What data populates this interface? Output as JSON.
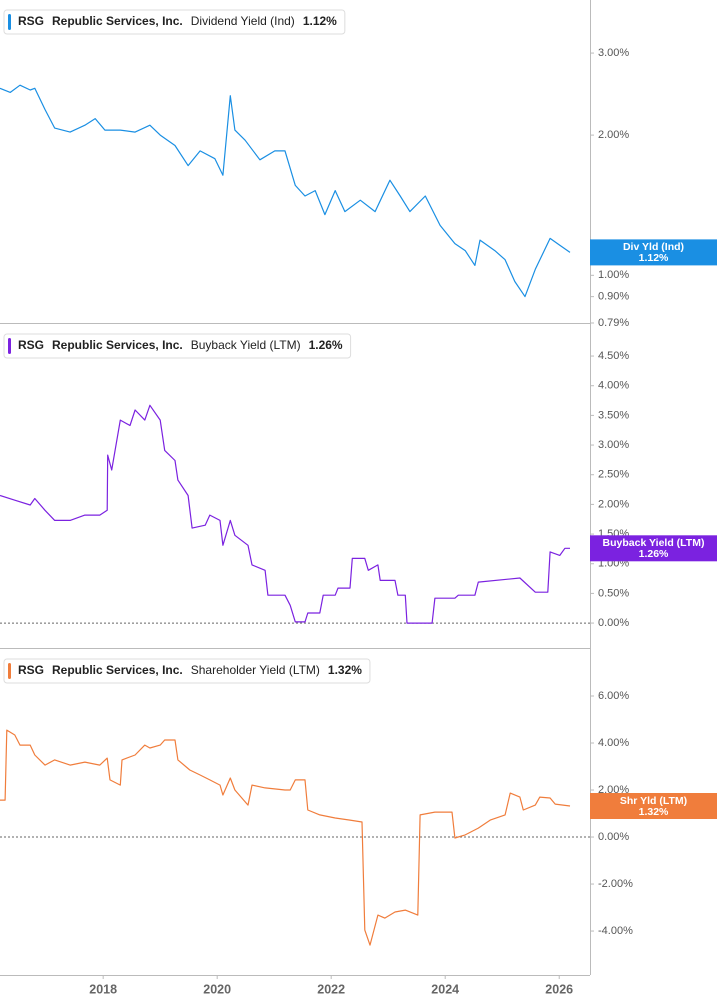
{
  "chart_data": [
    {
      "type": "line",
      "ticker": "RSG",
      "company": "Republic Services, Inc.",
      "title": "Dividend Yield (Ind)",
      "last_value": {
        "value": 1.12,
        "label": "1.12%"
      },
      "badge_label": "Div Yld (Ind)",
      "color": "#1a8fe3",
      "log_scale": true,
      "zero_line": false,
      "xlim": [
        2016.19,
        2026.54
      ],
      "ylim": [
        0.79,
        3.9
      ],
      "yticks": [
        {
          "value": 3,
          "label": "3.00%"
        },
        {
          "value": 2,
          "label": "2.00%"
        },
        {
          "value": 1,
          "label": "1.00%"
        },
        {
          "value": 0.9,
          "label": "0.90%"
        },
        {
          "value": 0.79,
          "label": "0.79%"
        }
      ],
      "x": [
        2016.19,
        2016.37,
        2016.54,
        2016.72,
        2016.8,
        2016.98,
        2017.15,
        2017.42,
        2017.68,
        2017.86,
        2018.03,
        2018.3,
        2018.56,
        2018.82,
        2019.0,
        2019.26,
        2019.49,
        2019.7,
        2019.96,
        2020.1,
        2020.23,
        2020.31,
        2020.49,
        2020.75,
        2021.01,
        2021.19,
        2021.37,
        2021.54,
        2021.72,
        2021.89,
        2022.07,
        2022.24,
        2022.51,
        2022.77,
        2023.03,
        2023.21,
        2023.38,
        2023.65,
        2023.91,
        2024.17,
        2024.35,
        2024.52,
        2024.61,
        2024.87,
        2025.05,
        2025.22,
        2025.4,
        2025.58,
        2025.84,
        2026.01,
        2026.19
      ],
      "values": [
        2.52,
        2.47,
        2.56,
        2.5,
        2.52,
        2.27,
        2.07,
        2.03,
        2.1,
        2.17,
        2.05,
        2.05,
        2.03,
        2.1,
        2.0,
        1.9,
        1.72,
        1.85,
        1.78,
        1.64,
        2.43,
        2.05,
        1.95,
        1.77,
        1.85,
        1.85,
        1.56,
        1.48,
        1.52,
        1.35,
        1.52,
        1.37,
        1.45,
        1.37,
        1.6,
        1.48,
        1.37,
        1.48,
        1.28,
        1.17,
        1.13,
        1.05,
        1.19,
        1.13,
        1.08,
        0.97,
        0.9,
        1.03,
        1.2,
        1.16,
        1.12
      ]
    },
    {
      "type": "line",
      "ticker": "RSG",
      "company": "Republic Services, Inc.",
      "title": "Buyback Yield (LTM)",
      "last_value": {
        "value": 1.26,
        "label": "1.26%"
      },
      "badge_label": "Buyback Yield (LTM)",
      "color": "#7b22e0",
      "log_scale": false,
      "zero_line": true,
      "xlim": [
        2016.19,
        2026.54
      ],
      "ylim": [
        -0.42,
        5.04
      ],
      "yticks": [
        {
          "value": 4.5,
          "label": "4.50%"
        },
        {
          "value": 4,
          "label": "4.00%"
        },
        {
          "value": 3.5,
          "label": "3.50%"
        },
        {
          "value": 3,
          "label": "3.00%"
        },
        {
          "value": 2.5,
          "label": "2.50%"
        },
        {
          "value": 2,
          "label": "2.00%"
        },
        {
          "value": 1.5,
          "label": "1.50%"
        },
        {
          "value": 1,
          "label": "1.00%"
        },
        {
          "value": 0.5,
          "label": "0.50%"
        },
        {
          "value": 0,
          "label": "0.00%"
        }
      ],
      "x": [
        2016.19,
        2016.45,
        2016.72,
        2016.8,
        2016.98,
        2017.15,
        2017.42,
        2017.68,
        2017.94,
        2018.07,
        2018.08,
        2018.15,
        2018.3,
        2018.47,
        2018.56,
        2018.73,
        2018.82,
        2019.0,
        2019.08,
        2019.26,
        2019.31,
        2019.49,
        2019.56,
        2019.79,
        2019.87,
        2020.05,
        2020.1,
        2020.23,
        2020.31,
        2020.54,
        2020.61,
        2020.84,
        2020.89,
        2021.19,
        2021.28,
        2021.37,
        2021.54,
        2021.59,
        2021.8,
        2021.86,
        2022.07,
        2022.12,
        2022.33,
        2022.37,
        2022.59,
        2022.65,
        2022.82,
        2022.86,
        2023.12,
        2023.17,
        2023.3,
        2023.33,
        2023.77,
        2023.82,
        2024.17,
        2024.23,
        2024.52,
        2024.58,
        2025.31,
        2025.58,
        2025.8,
        2025.84,
        2026.01,
        2026.1,
        2026.19
      ],
      "values": [
        2.15,
        2.07,
        1.99,
        2.1,
        1.9,
        1.73,
        1.73,
        1.82,
        1.82,
        1.9,
        2.83,
        2.58,
        3.42,
        3.33,
        3.59,
        3.42,
        3.67,
        3.42,
        2.91,
        2.74,
        2.41,
        2.15,
        1.6,
        1.65,
        1.82,
        1.73,
        1.31,
        1.73,
        1.48,
        1.31,
        0.98,
        0.89,
        0.47,
        0.47,
        0.3,
        0.02,
        0.02,
        0.17,
        0.17,
        0.47,
        0.47,
        0.59,
        0.59,
        1.09,
        1.09,
        0.89,
        0.98,
        0.72,
        0.72,
        0.47,
        0.47,
        0.0,
        0.0,
        0.42,
        0.42,
        0.47,
        0.47,
        0.69,
        0.76,
        0.52,
        0.52,
        1.2,
        1.14,
        1.26,
        1.26
      ]
    },
    {
      "type": "line",
      "ticker": "RSG",
      "company": "Republic Services, Inc.",
      "title": "Shareholder Yield (LTM)",
      "last_value": {
        "value": 1.32,
        "label": "1.32%"
      },
      "badge_label": "Shr Yld (LTM)",
      "color": "#f07d3c",
      "log_scale": false,
      "zero_line": true,
      "xlim": [
        2016.19,
        2026.54
      ],
      "ylim": [
        -5.87,
        8.0
      ],
      "yticks": [
        {
          "value": 6,
          "label": "6.00%"
        },
        {
          "value": 4,
          "label": "4.00%"
        },
        {
          "value": 2,
          "label": "2.00%"
        },
        {
          "value": 0,
          "label": "0.00%"
        },
        {
          "value": -2,
          "label": "-2.00%"
        },
        {
          "value": -4,
          "label": "-4.00%"
        }
      ],
      "xticks": [
        2018,
        2020,
        2022,
        2024,
        2026
      ],
      "x": [
        2016.19,
        2016.28,
        2016.31,
        2016.45,
        2016.54,
        2016.72,
        2016.8,
        2016.98,
        2017.15,
        2017.42,
        2017.68,
        2017.94,
        2018.07,
        2018.12,
        2018.3,
        2018.33,
        2018.56,
        2018.73,
        2018.82,
        2019.0,
        2019.08,
        2019.26,
        2019.31,
        2019.52,
        2019.7,
        2019.87,
        2020.05,
        2020.1,
        2020.23,
        2020.31,
        2020.54,
        2020.61,
        2020.84,
        2021.19,
        2021.28,
        2021.37,
        2021.54,
        2021.59,
        2021.8,
        2022.07,
        2022.33,
        2022.54,
        2022.59,
        2022.68,
        2022.82,
        2022.94,
        2023.12,
        2023.3,
        2023.52,
        2023.56,
        2023.82,
        2024.12,
        2024.17,
        2024.35,
        2024.58,
        2024.79,
        2025.05,
        2025.14,
        2025.31,
        2025.37,
        2025.58,
        2025.66,
        2025.84,
        2025.93,
        2026.19
      ],
      "values": [
        1.57,
        1.57,
        4.55,
        4.34,
        3.91,
        3.91,
        3.49,
        3.06,
        3.28,
        3.06,
        3.19,
        3.06,
        3.36,
        2.43,
        2.21,
        3.28,
        3.49,
        3.91,
        3.79,
        3.91,
        4.13,
        4.13,
        3.28,
        2.85,
        2.64,
        2.43,
        2.21,
        1.79,
        2.51,
        2.0,
        1.36,
        2.21,
        2.09,
        2.0,
        2.0,
        2.43,
        2.43,
        1.15,
        0.94,
        0.81,
        0.72,
        0.64,
        -3.96,
        -4.6,
        -3.32,
        -3.45,
        -3.19,
        -3.11,
        -3.32,
        0.94,
        1.06,
        1.06,
        -0.04,
        0.09,
        0.38,
        0.72,
        0.94,
        1.87,
        1.7,
        1.15,
        1.36,
        1.7,
        1.66,
        1.4,
        1.32
      ]
    }
  ]
}
